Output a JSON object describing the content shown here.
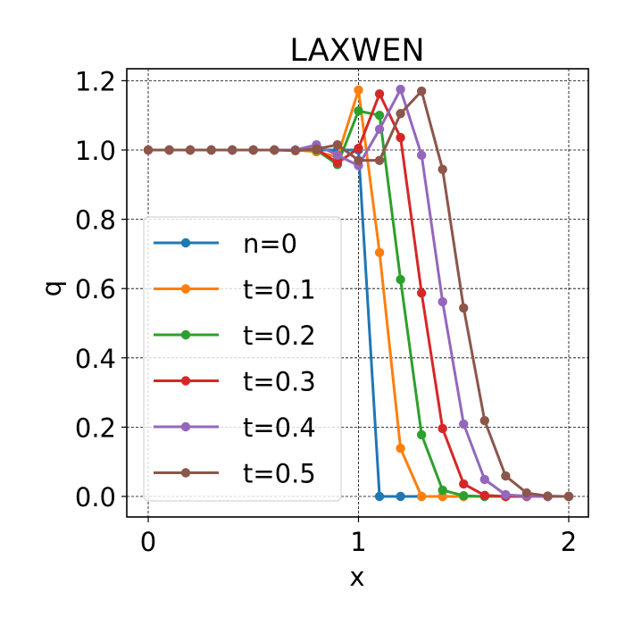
{
  "chart_data": {
    "type": "line",
    "title": "LAXWEN",
    "xlabel": "x",
    "ylabel": "q",
    "xlim": [
      -0.1,
      2.1
    ],
    "ylim": [
      -0.06,
      1.23
    ],
    "xticks": [
      0,
      1,
      2
    ],
    "xtick_labels": [
      "0",
      "1",
      "2"
    ],
    "yticks": [
      0.0,
      0.2,
      0.4,
      0.6,
      0.8,
      1.0,
      1.2
    ],
    "ytick_labels": [
      "0.0",
      "0.2",
      "0.4",
      "0.6",
      "0.8",
      "1.0",
      "1.2"
    ],
    "grid": true,
    "legend_position": "center left",
    "x": [
      0.0,
      0.1,
      0.2,
      0.3,
      0.4,
      0.5,
      0.6,
      0.7,
      0.8,
      0.9,
      1.0,
      1.1,
      1.2,
      1.3,
      1.4,
      1.5,
      1.6,
      1.7,
      1.8,
      1.9,
      2.0
    ],
    "series": [
      {
        "name": "n=0",
        "color": "#1f77b4",
        "values": [
          1.0,
          1.0,
          1.0,
          1.0,
          1.0,
          1.0,
          1.0,
          1.0,
          1.0,
          1.0,
          1.0,
          0.0,
          0.0,
          0.0,
          0.0,
          0.0,
          0.0,
          0.0,
          0.0,
          0.0,
          0.0
        ]
      },
      {
        "name": "t=0.1",
        "color": "#ff7f0e",
        "values": [
          1.0,
          1.0,
          1.0,
          1.0,
          1.0,
          1.0,
          1.0,
          1.0,
          0.995,
          0.98,
          1.173,
          0.704,
          0.139,
          0.0,
          0.0,
          0.0,
          0.0,
          0.0,
          0.0,
          0.0,
          0.0
        ]
      },
      {
        "name": "t=0.2",
        "color": "#2ca02c",
        "values": [
          1.0,
          1.0,
          1.0,
          1.0,
          1.0,
          1.0,
          1.0,
          1.0,
          1.0,
          0.958,
          1.113,
          1.1,
          0.626,
          0.178,
          0.018,
          0.002,
          0.0,
          0.0,
          0.0,
          0.0,
          0.0
        ]
      },
      {
        "name": "t=0.3",
        "color": "#d62728",
        "values": [
          1.0,
          1.0,
          1.0,
          1.0,
          1.0,
          1.0,
          1.0,
          1.0,
          1.003,
          0.963,
          1.005,
          1.162,
          1.036,
          0.587,
          0.196,
          0.036,
          0.003,
          0.0,
          0.0,
          0.0,
          0.0
        ]
      },
      {
        "name": "t=0.4",
        "color": "#9467bd",
        "values": [
          1.0,
          1.0,
          1.0,
          1.0,
          1.0,
          1.0,
          1.0,
          1.0,
          1.015,
          0.985,
          0.955,
          1.06,
          1.175,
          0.985,
          0.562,
          0.209,
          0.049,
          0.005,
          0.001,
          0.0,
          0.0
        ]
      },
      {
        "name": "t=0.5",
        "color": "#8c564b",
        "values": [
          1.0,
          1.0,
          1.0,
          1.0,
          1.0,
          1.0,
          1.0,
          0.998,
          1.003,
          1.015,
          0.97,
          0.97,
          1.105,
          1.17,
          0.944,
          0.544,
          0.219,
          0.059,
          0.01,
          0.001,
          0.0
        ]
      }
    ]
  }
}
